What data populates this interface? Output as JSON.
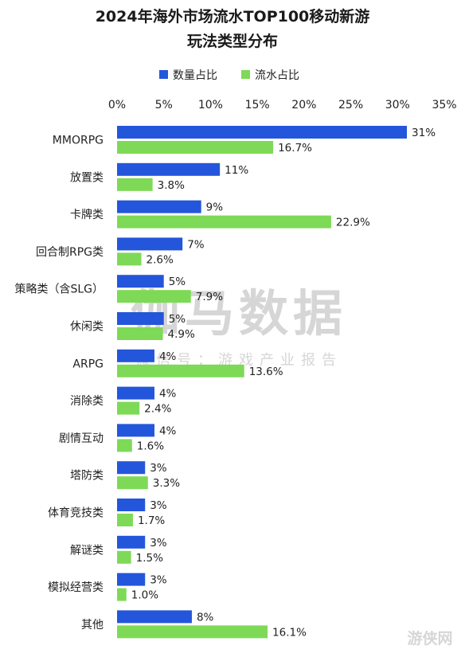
{
  "chart_data": {
    "type": "bar",
    "orientation": "horizontal",
    "title": "2024年海外市场流水TOP100移动新游\n玩法类型分布",
    "x_ticks": [
      "0%",
      "5%",
      "10%",
      "15%",
      "20%",
      "25%",
      "30%",
      "35%"
    ],
    "xlim": [
      0,
      35
    ],
    "legend_position": "top-center",
    "categories": [
      "MMORPG",
      "放置类",
      "卡牌类",
      "回合制RPG类",
      "策略类（含SLG）",
      "休闲类",
      "ARPG",
      "消除类",
      "剧情互动",
      "塔防类",
      "体育竞技类",
      "解谜类",
      "模拟经营类",
      "其他"
    ],
    "series": [
      {
        "name": "数量占比",
        "color": "#2456db",
        "values": [
          31,
          11,
          9,
          7,
          5,
          5,
          4,
          4,
          4,
          3,
          3,
          3,
          3,
          8
        ],
        "labels": [
          "31%",
          "11%",
          "9%",
          "7%",
          "5%",
          "5%",
          "4%",
          "4%",
          "4%",
          "3%",
          "3%",
          "3%",
          "3%",
          "8%"
        ]
      },
      {
        "name": "流水占比",
        "color": "#7ed957",
        "values": [
          16.7,
          3.8,
          22.9,
          2.6,
          7.9,
          4.9,
          13.6,
          2.4,
          1.6,
          3.3,
          1.7,
          1.5,
          1.0,
          16.1
        ],
        "labels": [
          "16.7%",
          "3.8%",
          "22.9%",
          "2.6%",
          "7.9%",
          "4.9%",
          "13.6%",
          "2.4%",
          "1.6%",
          "3.3%",
          "1.7%",
          "1.5%",
          "1.0%",
          "16.1%"
        ]
      }
    ],
    "grid": false
  },
  "watermark": {
    "main": "伽马数据",
    "sub": "微信号：游戏产业报告",
    "corner": "游侠网"
  }
}
